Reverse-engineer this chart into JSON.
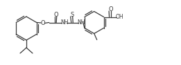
{
  "bg_color": "#ffffff",
  "line_color": "#3a3a3a",
  "line_width": 0.9,
  "figsize": [
    2.61,
    0.94
  ],
  "dpi": 100,
  "xlim": [
    0,
    261
  ],
  "ylim": [
    0,
    94
  ]
}
